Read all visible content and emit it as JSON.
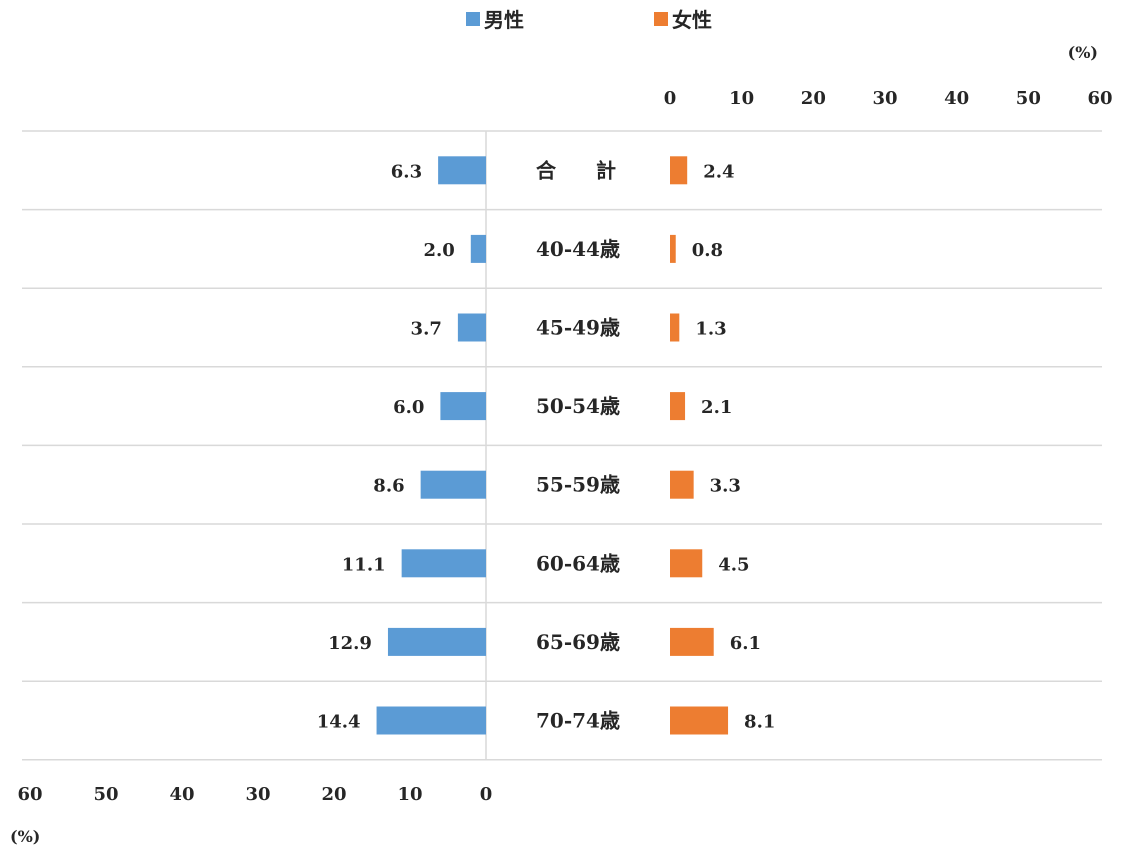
{
  "chart_data": {
    "type": "bar",
    "layout": "butterfly",
    "categories": [
      "合　　計",
      "40-44歳",
      "45-49歳",
      "50-54歳",
      "55-59歳",
      "60-64歳",
      "65-69歳",
      "70-74歳"
    ],
    "series": [
      {
        "name": "男性",
        "values": [
          6.3,
          2.0,
          3.7,
          6.0,
          8.6,
          11.1,
          12.9,
          14.4
        ],
        "color": "#5B9BD5",
        "value_labels": [
          "6.3",
          "2.0",
          "3.7",
          "6.0",
          "8.6",
          "11.1",
          "12.9",
          "14.4"
        ]
      },
      {
        "name": "女性",
        "values": [
          2.4,
          0.8,
          1.3,
          2.1,
          3.3,
          4.5,
          6.1,
          8.1
        ],
        "color": "#ED7D31",
        "value_labels": [
          "2.4",
          "0.8",
          "1.3",
          "2.1",
          "3.3",
          "4.5",
          "6.1",
          "8.1"
        ]
      }
    ],
    "left_axis": {
      "range": [
        0,
        60
      ],
      "ticks": [
        "60",
        "50",
        "40",
        "30",
        "20",
        "10",
        "0"
      ],
      "unit": "(%)"
    },
    "right_axis": {
      "range": [
        0,
        60
      ],
      "ticks": [
        "0",
        "10",
        "20",
        "30",
        "40",
        "50",
        "60"
      ],
      "unit": "(%)"
    },
    "legend_position": "top-center",
    "grid": true
  }
}
